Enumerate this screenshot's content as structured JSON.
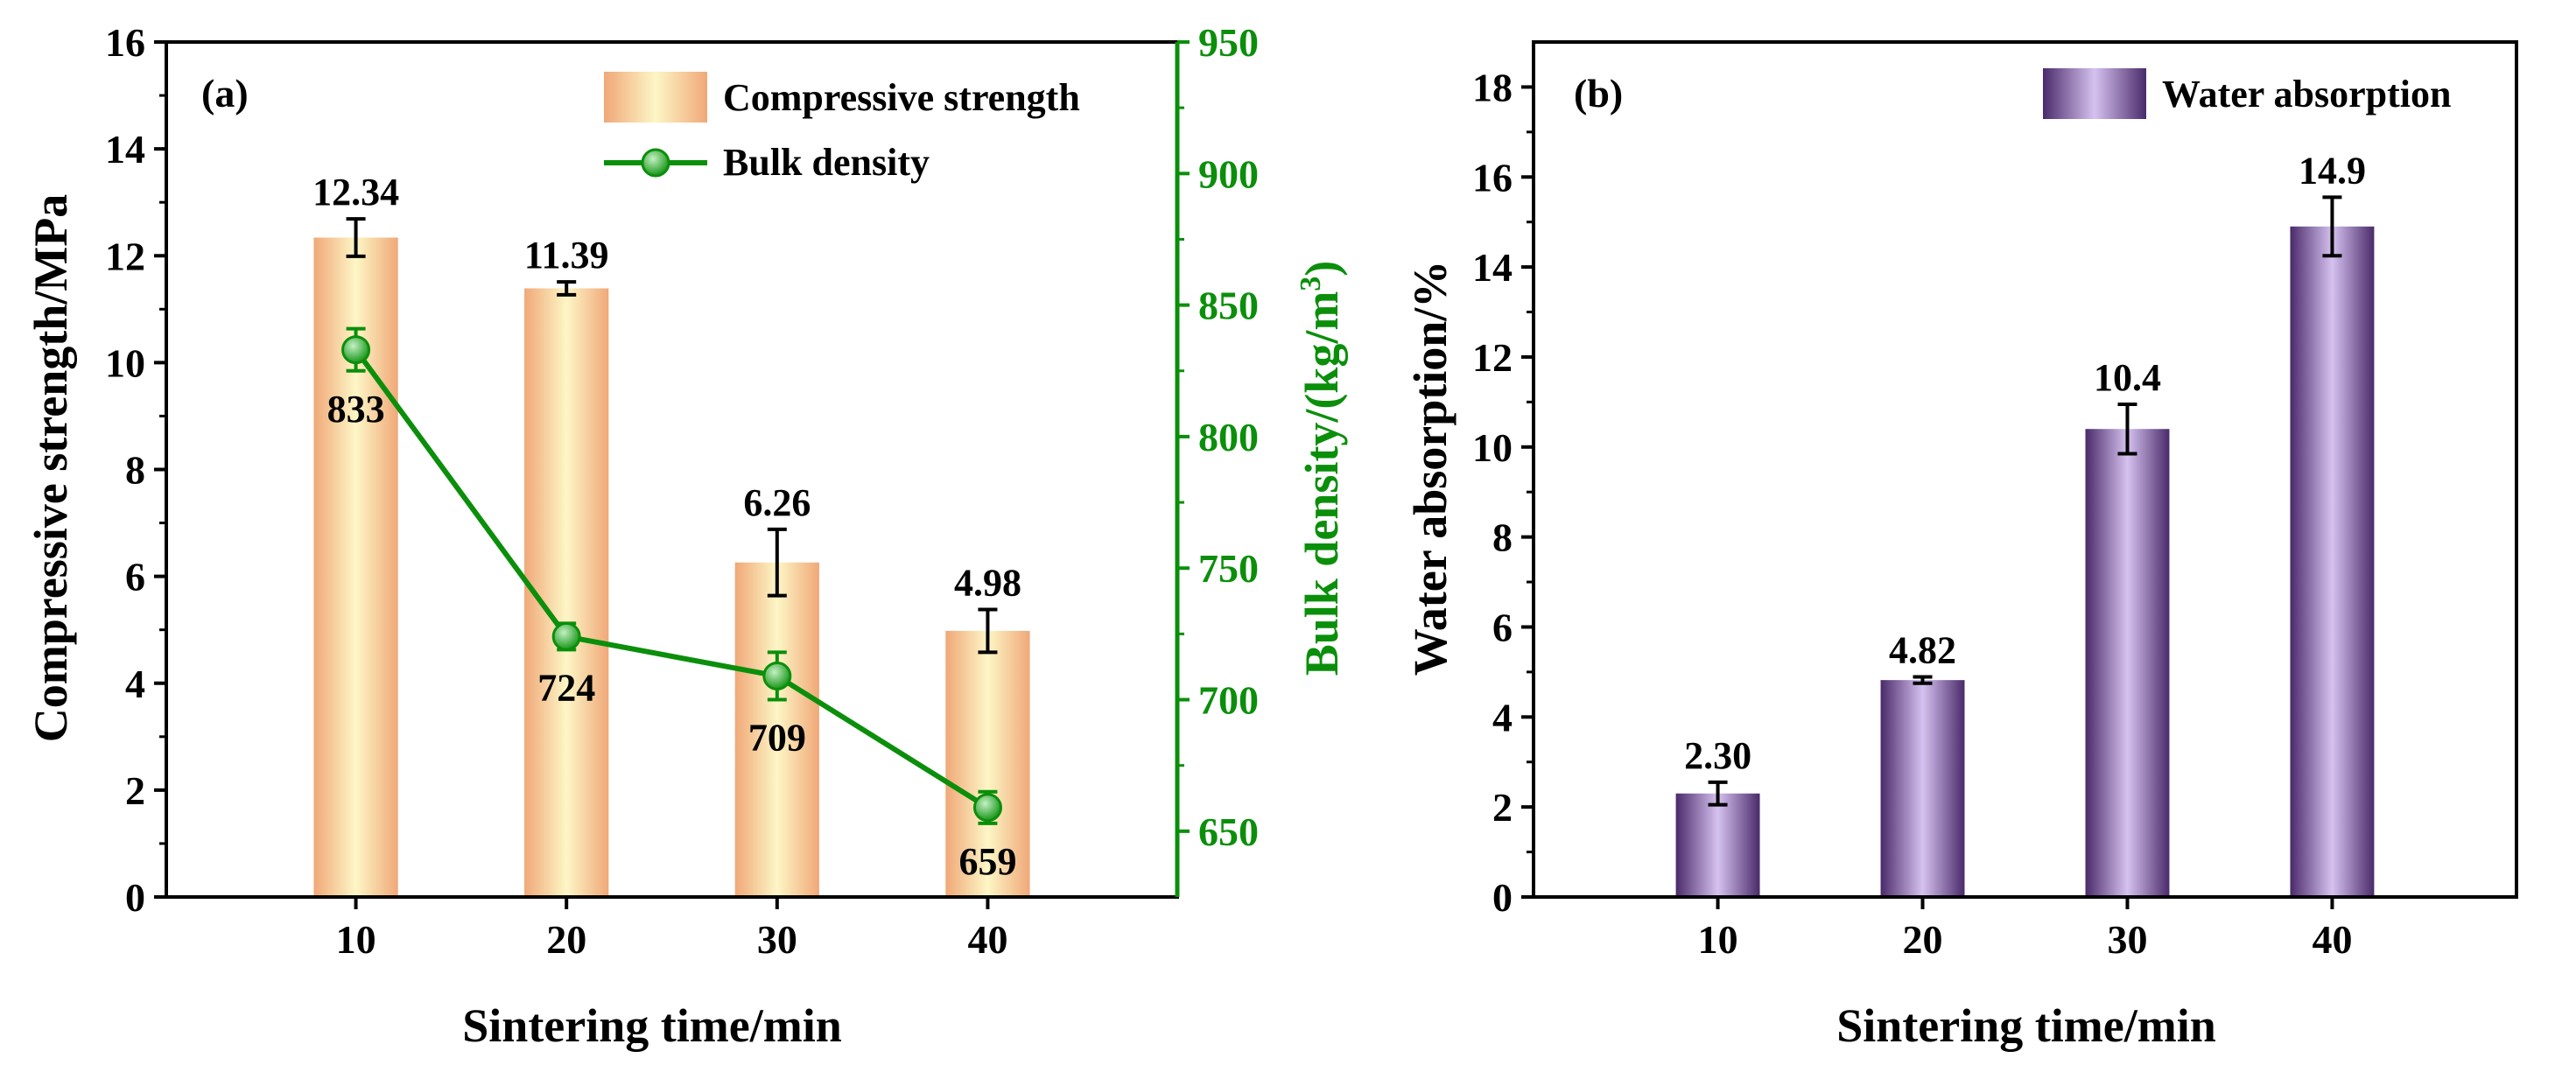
{
  "chart_data": [
    {
      "type": "bar+line",
      "panel_label": "(a)",
      "xlabel": "Sintering time/min",
      "ylabel": "Compressive strength/MPa",
      "y2label": "Bulk density/(kg/m",
      "y2label_sup": "3",
      "y2label_end": ")",
      "categories": [
        "10",
        "20",
        "30",
        "40"
      ],
      "ylim": [
        0,
        16
      ],
      "yticks": [
        "0",
        "2",
        "4",
        "6",
        "8",
        "10",
        "12",
        "14",
        "16"
      ],
      "y2lim": [
        625,
        950
      ],
      "y2ticks": [
        "650",
        "700",
        "750",
        "800",
        "850",
        "900",
        "950"
      ],
      "series": [
        {
          "name": "Compressive strength",
          "type": "bar",
          "axis": "left",
          "values": [
            12.34,
            11.39,
            6.26,
            4.98
          ],
          "errors": [
            0.35,
            0.12,
            0.62,
            0.4
          ],
          "labels": [
            "12.34",
            "11.39",
            "6.26",
            "4.98"
          ]
        },
        {
          "name": "Bulk density",
          "type": "line",
          "axis": "right",
          "values": [
            833,
            724,
            709,
            659
          ],
          "errors": [
            8,
            5,
            9,
            6
          ],
          "labels": [
            "833",
            "724",
            "709",
            "659"
          ]
        }
      ],
      "legend": [
        "Compressive strength",
        "Bulk density"
      ],
      "legend_position": "top-right",
      "colors": {
        "bar_edge": "#f0a878",
        "bar_center": "#fdf6c6",
        "line": "#0b8f0b",
        "marker_light": "#c4f0c4",
        "right_axis": "#0b8f0b"
      }
    },
    {
      "type": "bar",
      "panel_label": "(b)",
      "xlabel": "Sintering time/min",
      "ylabel": "Water absorption/%",
      "categories": [
        "10",
        "20",
        "30",
        "40"
      ],
      "ylim": [
        0,
        19
      ],
      "yticks": [
        "0",
        "2",
        "4",
        "6",
        "8",
        "10",
        "12",
        "14",
        "16",
        "18"
      ],
      "series": [
        {
          "name": "Water absorption",
          "values": [
            2.3,
            4.82,
            10.4,
            14.9
          ],
          "errors": [
            0.25,
            0.07,
            0.55,
            0.65
          ],
          "labels": [
            "2.30",
            "4.82",
            "10.4",
            "14.9"
          ]
        }
      ],
      "legend": [
        "Water absorption"
      ],
      "legend_position": "top-right",
      "colors": {
        "bar_edge": "#4a2a6a",
        "bar_center": "#d6c2f0"
      }
    }
  ]
}
